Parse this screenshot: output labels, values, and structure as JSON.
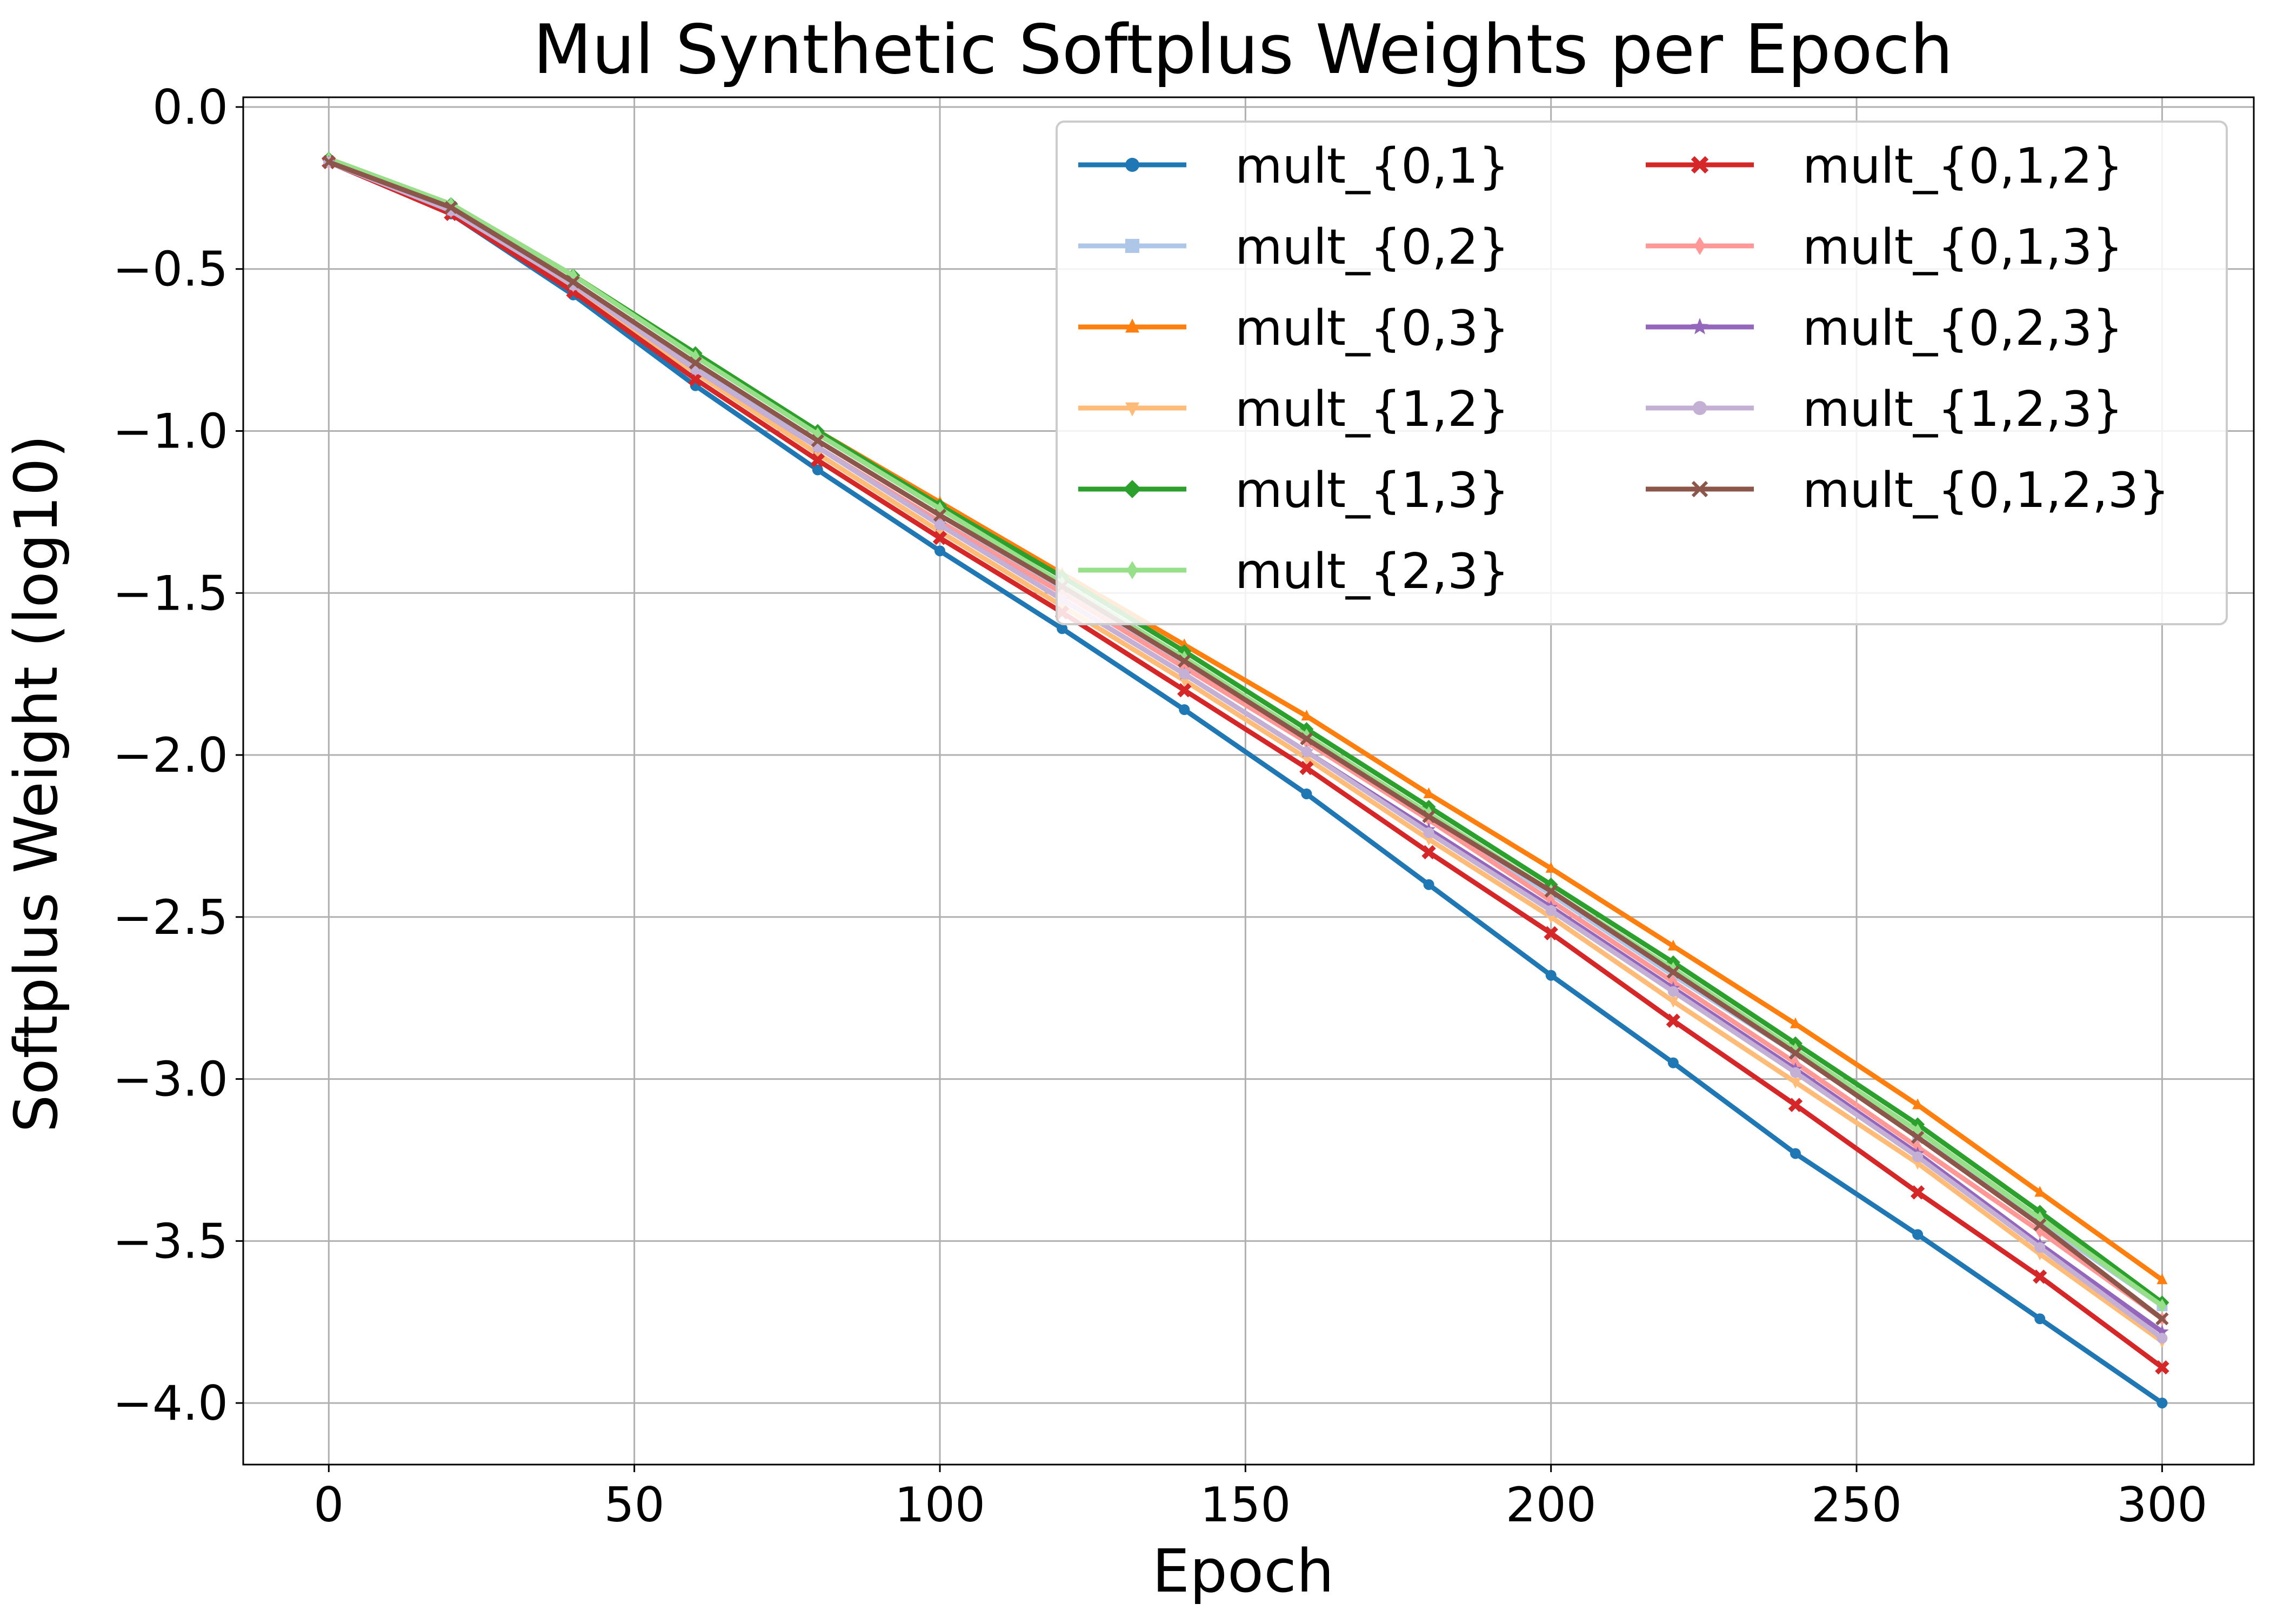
{
  "chart_data": {
    "type": "line",
    "title": "Mul Synthetic Softplus Weights per Epoch",
    "xlabel": "Epoch",
    "ylabel": "Softplus Weight (log10)",
    "xlim": [
      -14,
      315
    ],
    "ylim": [
      -4.19,
      0.03
    ],
    "x_ticks": [
      0,
      50,
      100,
      150,
      200,
      250,
      300
    ],
    "y_ticks": [
      0.0,
      -0.5,
      -1.0,
      -1.5,
      -2.0,
      -2.5,
      -3.0,
      -3.5,
      -4.0
    ],
    "x_tick_labels": [
      "0",
      "50",
      "100",
      "150",
      "200",
      "250",
      "300"
    ],
    "y_tick_labels": [
      "0.0",
      "−0.5",
      "−1.0",
      "−1.5",
      "−2.0",
      "−2.5",
      "−3.0",
      "−3.5",
      "−4.0"
    ],
    "grid": true,
    "legend": {
      "placement": "top-right",
      "columns": 2
    },
    "x": [
      0,
      20,
      40,
      60,
      80,
      100,
      120,
      140,
      160,
      180,
      200,
      220,
      240,
      260,
      280,
      300
    ],
    "series": [
      {
        "name": "mult_{0,1}",
        "color": "#1f77b4",
        "marker": "circle",
        "values": [
          -0.17,
          -0.33,
          -0.58,
          -0.86,
          -1.12,
          -1.37,
          -1.61,
          -1.86,
          -2.12,
          -2.4,
          -2.68,
          -2.95,
          -3.23,
          -3.48,
          -3.74,
          -4.0
        ]
      },
      {
        "name": "mult_{0,2}",
        "color": "#aec7e8",
        "marker": "square",
        "values": [
          -0.17,
          -0.32,
          -0.55,
          -0.8,
          -1.05,
          -1.28,
          -1.49,
          -1.72,
          -1.95,
          -2.19,
          -2.43,
          -2.68,
          -2.92,
          -3.18,
          -3.44,
          -3.7
        ]
      },
      {
        "name": "mult_{0,3}",
        "color": "#ff7f0e",
        "marker": "triangle-up",
        "values": [
          -0.16,
          -0.3,
          -0.52,
          -0.76,
          -1.0,
          -1.22,
          -1.44,
          -1.66,
          -1.88,
          -2.12,
          -2.35,
          -2.59,
          -2.83,
          -3.08,
          -3.35,
          -3.62
        ]
      },
      {
        "name": "mult_{1,2}",
        "color": "#ffbb78",
        "marker": "triangle-down",
        "values": [
          -0.17,
          -0.32,
          -0.56,
          -0.82,
          -1.07,
          -1.31,
          -1.54,
          -1.77,
          -2.01,
          -2.26,
          -2.5,
          -2.76,
          -3.01,
          -3.26,
          -3.54,
          -3.81
        ]
      },
      {
        "name": "mult_{1,3}",
        "color": "#2ca02c",
        "marker": "diamond",
        "values": [
          -0.16,
          -0.3,
          -0.52,
          -0.76,
          -1.0,
          -1.23,
          -1.45,
          -1.68,
          -1.92,
          -2.16,
          -2.4,
          -2.64,
          -2.89,
          -3.14,
          -3.41,
          -3.69
        ]
      },
      {
        "name": "mult_{2,3}",
        "color": "#98df8a",
        "marker": "thin-diamond",
        "values": [
          -0.16,
          -0.3,
          -0.52,
          -0.77,
          -1.01,
          -1.24,
          -1.47,
          -1.7,
          -1.94,
          -2.18,
          -2.42,
          -2.66,
          -2.91,
          -3.16,
          -3.43,
          -3.7
        ]
      },
      {
        "name": "mult_{0,1,2}",
        "color": "#d62728",
        "marker": "x-filled",
        "values": [
          -0.17,
          -0.33,
          -0.57,
          -0.84,
          -1.09,
          -1.33,
          -1.56,
          -1.8,
          -2.04,
          -2.3,
          -2.55,
          -2.82,
          -3.08,
          -3.35,
          -3.61,
          -3.89
        ]
      },
      {
        "name": "mult_{0,1,3}",
        "color": "#ff9896",
        "marker": "thin-diamond",
        "values": [
          -0.17,
          -0.32,
          -0.55,
          -0.81,
          -1.05,
          -1.28,
          -1.5,
          -1.73,
          -1.96,
          -2.2,
          -2.45,
          -2.7,
          -2.95,
          -3.21,
          -3.47,
          -3.74
        ]
      },
      {
        "name": "mult_{0,2,3}",
        "color": "#9467bd",
        "marker": "star",
        "values": [
          -0.17,
          -0.32,
          -0.55,
          -0.81,
          -1.05,
          -1.29,
          -1.52,
          -1.75,
          -1.99,
          -2.23,
          -2.47,
          -2.72,
          -2.97,
          -3.23,
          -3.51,
          -3.78
        ]
      },
      {
        "name": "mult_{1,2,3}",
        "color": "#c5b0d5",
        "marker": "hexagon",
        "values": [
          -0.17,
          -0.32,
          -0.55,
          -0.81,
          -1.05,
          -1.29,
          -1.52,
          -1.75,
          -1.99,
          -2.24,
          -2.48,
          -2.73,
          -2.98,
          -3.24,
          -3.52,
          -3.8
        ]
      },
      {
        "name": "mult_{0,1,2,3}",
        "color": "#8c564b",
        "marker": "x",
        "values": [
          -0.17,
          -0.31,
          -0.54,
          -0.79,
          -1.03,
          -1.26,
          -1.48,
          -1.71,
          -1.95,
          -2.19,
          -2.42,
          -2.67,
          -2.92,
          -3.18,
          -3.45,
          -3.74
        ]
      }
    ]
  }
}
